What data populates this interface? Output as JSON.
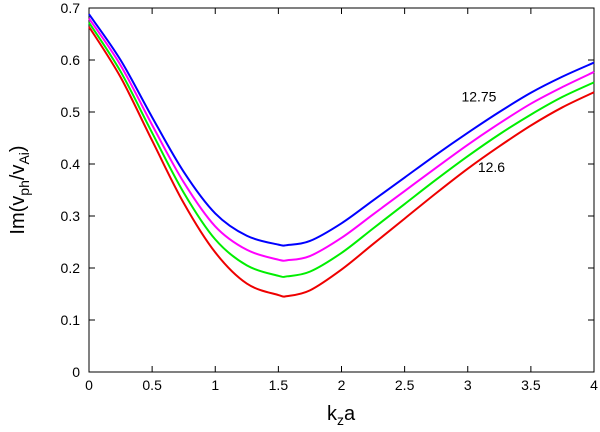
{
  "chart_data": {
    "type": "line",
    "title": "",
    "xlabel": {
      "base": "k",
      "sub": "z",
      "tail": "a"
    },
    "ylabel": {
      "pre": "Im(v",
      "sub1": "ph",
      "mid": "/v",
      "sub2": "Ai",
      "post": ")"
    },
    "xlim": [
      0,
      4
    ],
    "ylim": [
      0,
      0.7
    ],
    "xticks": [
      "0",
      "0.5",
      "1",
      "1.5",
      "2",
      "2.5",
      "3",
      "3.5",
      "4"
    ],
    "yticks": [
      "0",
      "0.1",
      "0.2",
      "0.3",
      "0.4",
      "0.5",
      "0.6",
      "0.7"
    ],
    "grid": false,
    "legend": "none",
    "x": [
      0,
      0.25,
      0.5,
      0.75,
      1.0,
      1.25,
      1.5,
      1.57,
      1.75,
      2.0,
      2.25,
      2.5,
      2.75,
      3.0,
      3.25,
      3.5,
      3.75,
      4.0
    ],
    "series": [
      {
        "color": "#0000ff",
        "values": [
          0.688,
          0.6,
          0.49,
          0.385,
          0.305,
          0.262,
          0.245,
          0.244,
          0.252,
          0.286,
          0.33,
          0.374,
          0.418,
          0.46,
          0.5,
          0.537,
          0.568,
          0.595
        ]
      },
      {
        "color": "#ff00ff",
        "values": [
          0.68,
          0.59,
          0.475,
          0.365,
          0.28,
          0.235,
          0.216,
          0.215,
          0.223,
          0.258,
          0.303,
          0.348,
          0.393,
          0.437,
          0.478,
          0.516,
          0.548,
          0.577
        ]
      },
      {
        "color": "#00ee00",
        "values": [
          0.672,
          0.578,
          0.46,
          0.345,
          0.255,
          0.205,
          0.185,
          0.184,
          0.193,
          0.229,
          0.276,
          0.323,
          0.37,
          0.415,
          0.457,
          0.495,
          0.529,
          0.557
        ]
      },
      {
        "color": "#ee0000",
        "values": [
          0.664,
          0.567,
          0.445,
          0.325,
          0.23,
          0.17,
          0.148,
          0.146,
          0.157,
          0.197,
          0.246,
          0.295,
          0.344,
          0.391,
          0.434,
          0.474,
          0.509,
          0.538
        ]
      }
    ],
    "annotations": [
      {
        "text": "12.75",
        "x": 2.95,
        "y": 0.52
      },
      {
        "text": "12.6",
        "x": 3.08,
        "y": 0.385
      }
    ]
  }
}
